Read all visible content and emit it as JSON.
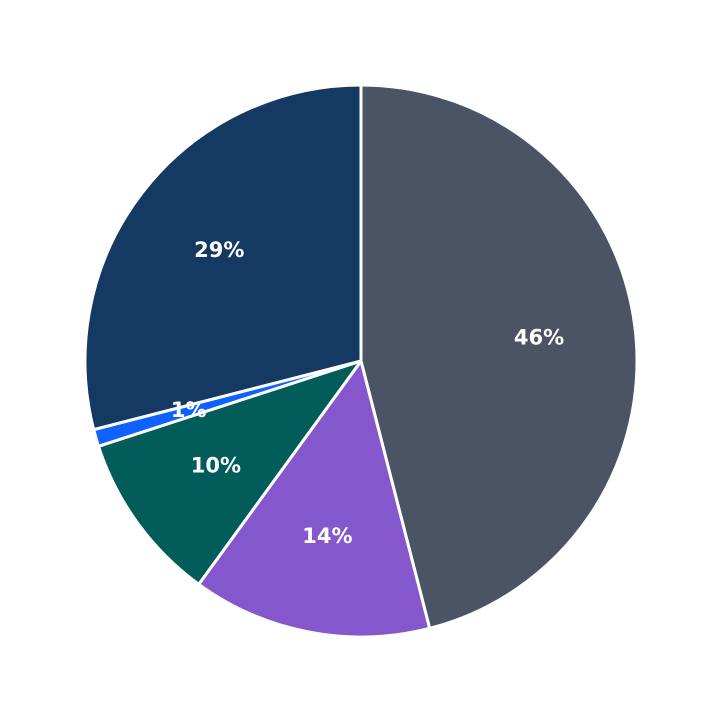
{
  "chart_data": {
    "type": "pie",
    "values": [
      46,
      14,
      10,
      1,
      29
    ],
    "value_labels": [
      "46%",
      "14%",
      "10%",
      "1%",
      "29%"
    ],
    "colors": [
      "#4a5464",
      "#8457cc",
      "#025c5a",
      "#0f62fe",
      "#143963"
    ]
  }
}
